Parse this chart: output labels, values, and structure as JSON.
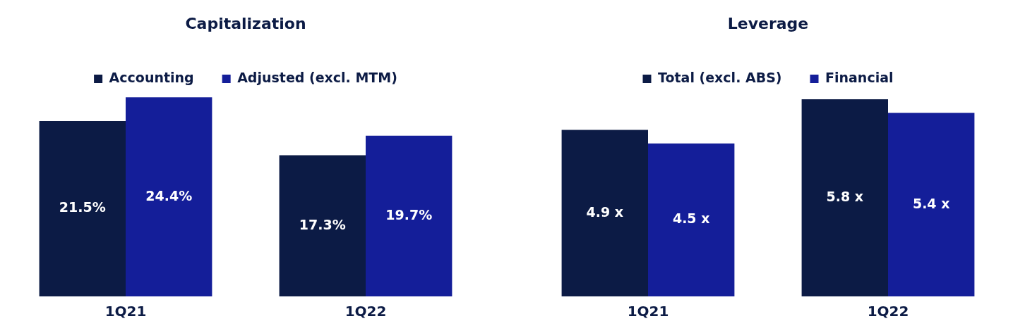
{
  "chart_data": [
    {
      "type": "bar",
      "title": "Capitalization",
      "categories": [
        "1Q21",
        "1Q22"
      ],
      "legend": "top",
      "series": [
        {
          "name": "Accounting",
          "color": "#0c1b45",
          "values": [
            21.5,
            17.3
          ],
          "value_labels": [
            "21.5%",
            "17.3%"
          ]
        },
        {
          "name": "Adjusted (excl. MTM)",
          "color": "#141e99",
          "values": [
            24.4,
            19.7
          ],
          "value_labels": [
            "24.4%",
            "19.7%"
          ]
        }
      ]
    },
    {
      "type": "bar",
      "title": "Leverage",
      "categories": [
        "1Q21",
        "1Q22"
      ],
      "legend": "top",
      "series": [
        {
          "name": "Total (excl. ABS)",
          "color": "#0c1b45",
          "values": [
            4.9,
            5.8
          ],
          "value_labels": [
            "4.9 x",
            "5.8 x"
          ]
        },
        {
          "name": "Financial",
          "color": "#141e99",
          "values": [
            4.5,
            5.4
          ],
          "value_labels": [
            "4.5 x",
            "5.4 x"
          ]
        }
      ]
    }
  ]
}
